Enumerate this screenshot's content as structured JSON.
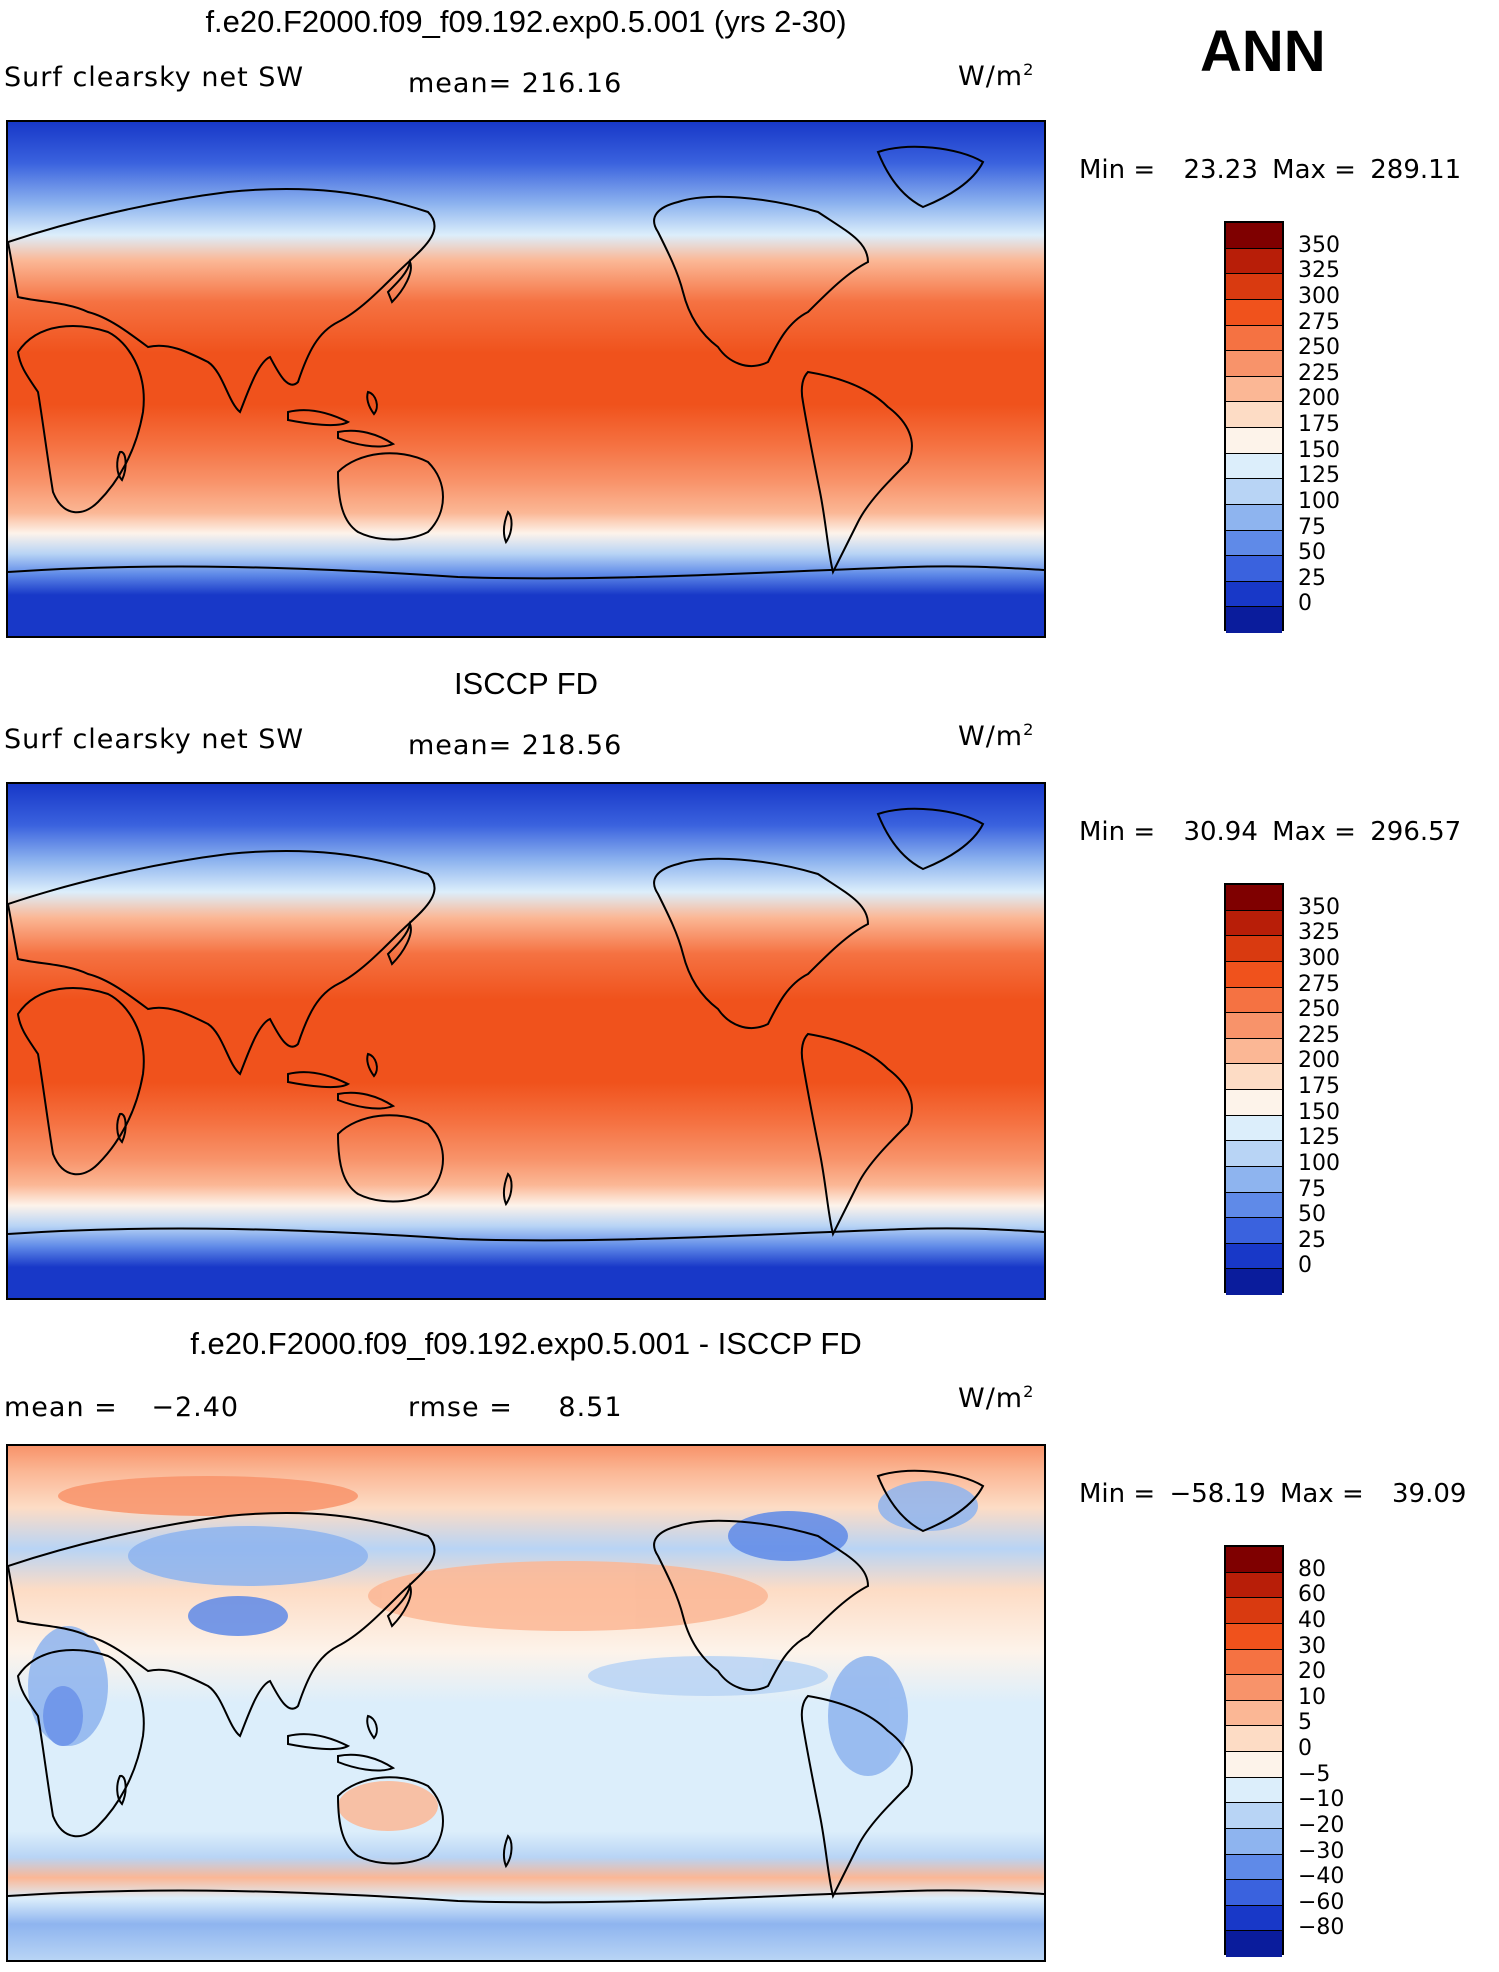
{
  "annotation": "ANN",
  "units_prefix": "W/m",
  "units_exp": "2",
  "panels": [
    {
      "title": "f.e20.F2000.f09_f09.192.exp0.5.001 (yrs 2-30)",
      "left_label": "Surf  clearsky  net  SW",
      "stat1_label": "mean=",
      "stat1_value": "216.16",
      "min_label": "Min  =",
      "min_value": "23.23",
      "max_label": "Max  =",
      "max_value": "289.11"
    },
    {
      "title": "ISCCP FD",
      "left_label": "Surf  clearsky  net  SW",
      "stat1_label": "mean=",
      "stat1_value": "218.56",
      "min_label": "Min  =",
      "min_value": "30.94",
      "max_label": "Max  =",
      "max_value": "296.57"
    },
    {
      "title": "f.e20.F2000.f09_f09.192.exp0.5.001 - ISCCP FD",
      "stat1_label": "mean  =",
      "stat1_value": "−2.40",
      "stat2_label": "rmse  =",
      "stat2_value": "8.51",
      "min_label": "Min  =",
      "min_value": "−58.19",
      "max_label": "Max  =",
      "max_value": "39.09"
    }
  ],
  "colorbar_abs": {
    "labels": [
      "350",
      "325",
      "300",
      "275",
      "250",
      "225",
      "200",
      "175",
      "150",
      "125",
      "100",
      "75",
      "50",
      "25",
      "0"
    ],
    "colors": [
      "#7f0000",
      "#b81e08",
      "#d93a10",
      "#f0521c",
      "#f57242",
      "#f8936a",
      "#fbb795",
      "#fddcc5",
      "#fdf3ea",
      "#dceefb",
      "#b8d4f5",
      "#8eb4ef",
      "#5f8ae8",
      "#3a62de",
      "#1838c8",
      "#0a1c9c"
    ]
  },
  "colorbar_diff": {
    "labels": [
      "80",
      "60",
      "40",
      "30",
      "20",
      "10",
      "5",
      "0",
      "−5",
      "−10",
      "−20",
      "−30",
      "−40",
      "−60",
      "−80"
    ],
    "colors": [
      "#7f0000",
      "#b81e08",
      "#d93a10",
      "#f0521c",
      "#f57242",
      "#f8936a",
      "#fbb795",
      "#fddcc5",
      "#fdf3ea",
      "#dceefb",
      "#b8d4f5",
      "#8eb4ef",
      "#5f8ae8",
      "#3a62de",
      "#1838c8",
      "#0a1c9c"
    ]
  }
}
